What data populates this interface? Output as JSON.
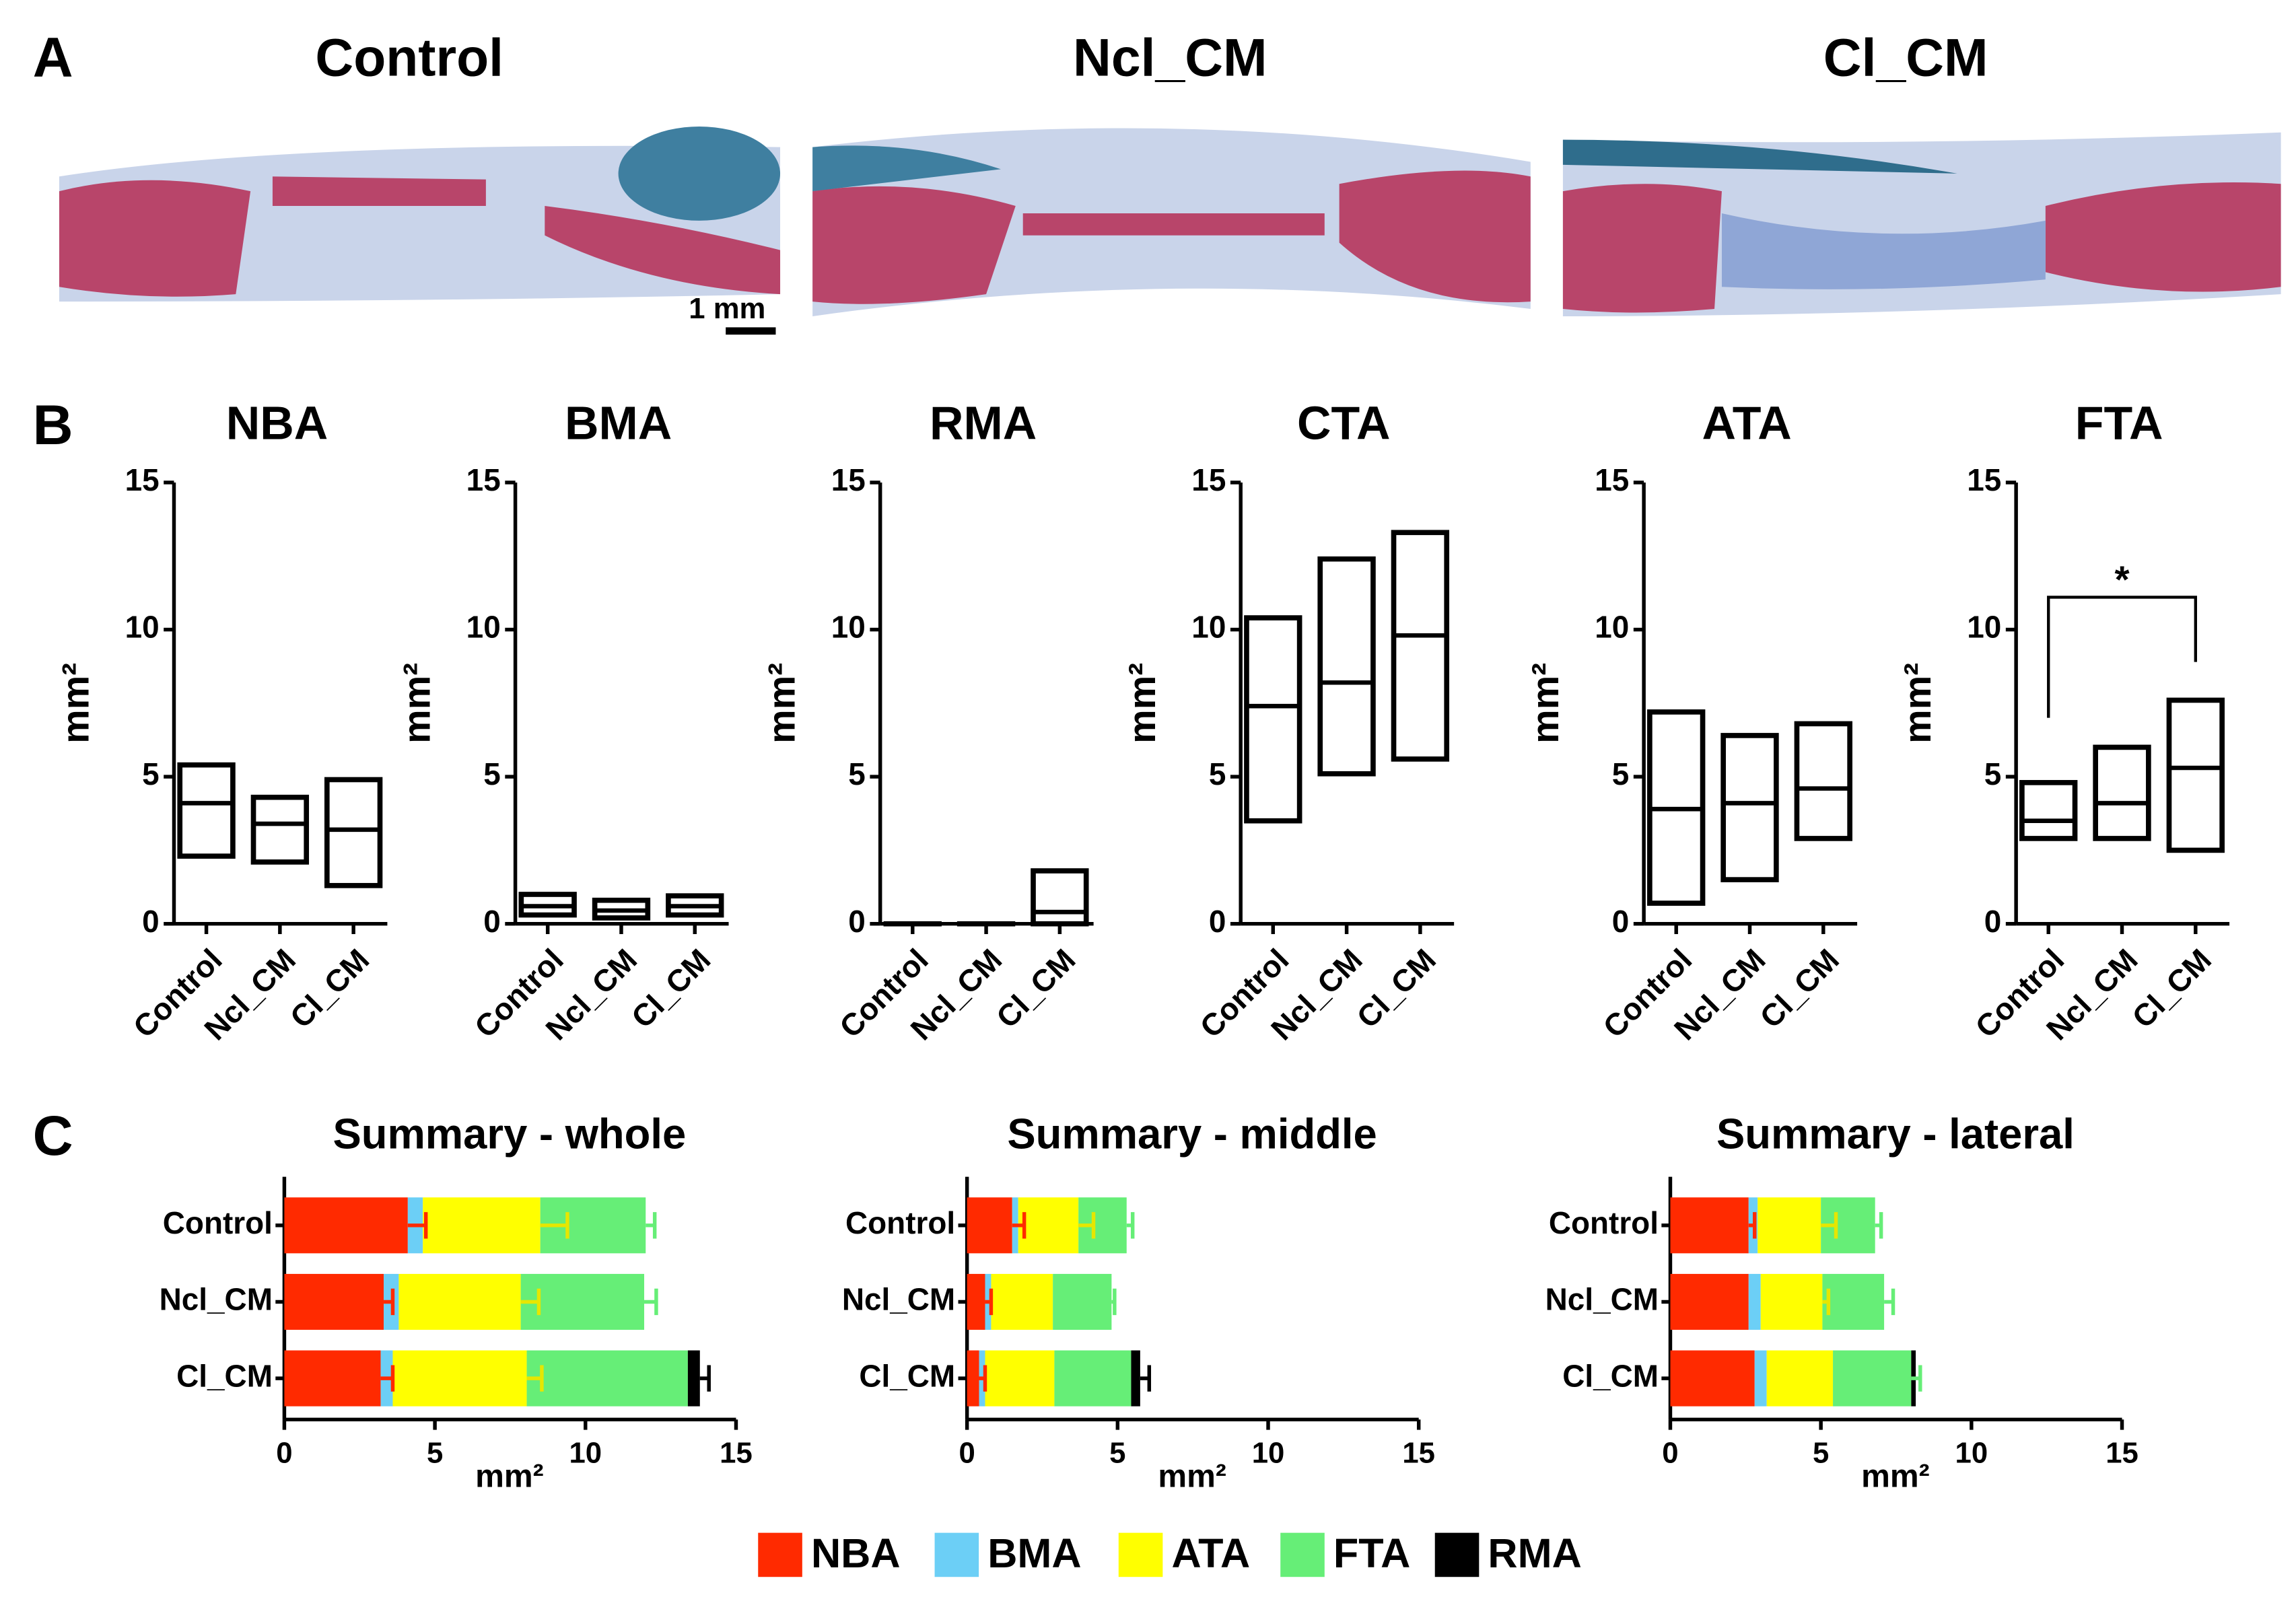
{
  "panel_labels": [
    "A",
    "B",
    "C"
  ],
  "images": {
    "titles": [
      "Control",
      "Ncl_CM",
      "Cl_CM"
    ],
    "scale_bar": "1 mm"
  },
  "chart_data": [
    {
      "type": "box",
      "title": "NBA",
      "y_label": "mm²",
      "categories": [
        "Control",
        "Ncl_CM",
        "Cl_CM"
      ],
      "min": [
        2.3,
        2.1,
        1.3
      ],
      "median": [
        4.1,
        3.4,
        3.2
      ],
      "max": [
        5.4,
        4.3,
        4.9
      ],
      "ylim": [
        0,
        15
      ],
      "yticks": [
        0,
        5,
        10,
        15
      ]
    },
    {
      "type": "box",
      "title": "BMA",
      "y_label": "mm²",
      "categories": [
        "Control",
        "Ncl_CM",
        "Cl_CM"
      ],
      "min": [
        0.3,
        0.2,
        0.3
      ],
      "median": [
        0.6,
        0.45,
        0.6
      ],
      "max": [
        1.0,
        0.8,
        0.95
      ],
      "ylim": [
        0,
        15
      ],
      "yticks": [
        0,
        5,
        10,
        15
      ]
    },
    {
      "type": "box",
      "title": "RMA",
      "y_label": "mm²",
      "categories": [
        "Control",
        "Ncl_CM",
        "Cl_CM"
      ],
      "min": [
        0,
        0,
        0
      ],
      "median": [
        0,
        0,
        0.4
      ],
      "max": [
        0,
        0,
        1.8
      ],
      "ylim": [
        0,
        15
      ],
      "yticks": [
        0,
        5,
        10,
        15
      ]
    },
    {
      "type": "box",
      "title": "CTA",
      "y_label": "mm²",
      "categories": [
        "Control",
        "Ncl_CM",
        "Cl_CM"
      ],
      "min": [
        3.5,
        5.1,
        5.6
      ],
      "median": [
        7.4,
        8.2,
        9.8
      ],
      "max": [
        10.4,
        12.4,
        13.3
      ],
      "ylim": [
        0,
        15
      ],
      "yticks": [
        0,
        5,
        10,
        15
      ]
    },
    {
      "type": "box",
      "title": "ATA",
      "y_label": "mm²",
      "categories": [
        "Control",
        "Ncl_CM",
        "Cl_CM"
      ],
      "min": [
        0.7,
        1.5,
        2.9
      ],
      "median": [
        3.9,
        4.1,
        4.6
      ],
      "max": [
        7.2,
        6.4,
        6.8
      ],
      "ylim": [
        0,
        15
      ],
      "yticks": [
        0,
        5,
        10,
        15
      ]
    },
    {
      "type": "box",
      "title": "FTA",
      "y_label": "mm²",
      "categories": [
        "Control",
        "Ncl_CM",
        "Cl_CM"
      ],
      "min": [
        2.9,
        2.9,
        2.5
      ],
      "median": [
        3.5,
        4.1,
        5.3
      ],
      "max": [
        4.8,
        6.0,
        7.6
      ],
      "ylim": [
        0,
        15
      ],
      "yticks": [
        0,
        5,
        10,
        15
      ],
      "significance": [
        {
          "label": "*",
          "between": [
            "Control",
            "Cl_CM"
          ]
        }
      ]
    },
    {
      "type": "stacked_barh",
      "title": "Summary - whole",
      "x_label": "mm²",
      "categories": [
        "Control",
        "Ncl_CM",
        "Cl_CM"
      ],
      "xlim": [
        0,
        15
      ],
      "xticks": [
        0,
        5,
        10,
        15
      ],
      "series": [
        {
          "name": "NBA",
          "color": "#ff2a00",
          "values": [
            4.1,
            3.3,
            3.2
          ],
          "errors": [
            0.6,
            0.3,
            0.4
          ]
        },
        {
          "name": "BMA",
          "color": "#6ccff6",
          "values": [
            0.5,
            0.5,
            0.4
          ],
          "errors": [
            null,
            null,
            null
          ]
        },
        {
          "name": "ATA",
          "color": "#ffff00",
          "values": [
            3.9,
            4.05,
            4.45
          ],
          "errors": [
            0.9,
            0.6,
            0.5
          ]
        },
        {
          "name": "FTA",
          "color": "#66ee77",
          "values": [
            3.5,
            4.1,
            5.35
          ],
          "errors": [
            0.3,
            0.4,
            null
          ]
        },
        {
          "name": "RMA",
          "color": "#000000",
          "values": [
            0,
            0,
            0.4
          ],
          "errors": [
            null,
            null,
            0.3
          ]
        }
      ]
    },
    {
      "type": "stacked_barh",
      "title": "Summary - middle",
      "x_label": "mm²",
      "categories": [
        "Control",
        "Ncl_CM",
        "Cl_CM"
      ],
      "xlim": [
        0,
        15
      ],
      "xticks": [
        0,
        5,
        10,
        15
      ],
      "series": [
        {
          "name": "NBA",
          "color": "#ff2a00",
          "values": [
            1.5,
            0.6,
            0.4
          ],
          "errors": [
            0.4,
            0.2,
            0.2
          ]
        },
        {
          "name": "BMA",
          "color": "#6ccff6",
          "values": [
            0.2,
            0.2,
            0.2
          ],
          "errors": [
            null,
            null,
            null
          ]
        },
        {
          "name": "ATA",
          "color": "#ffff00",
          "values": [
            2.0,
            2.05,
            2.3
          ],
          "errors": [
            0.5,
            null,
            null
          ]
        },
        {
          "name": "FTA",
          "color": "#66ee77",
          "values": [
            1.6,
            1.95,
            2.55
          ],
          "errors": [
            0.2,
            0.1,
            null
          ]
        },
        {
          "name": "RMA",
          "color": "#000000",
          "values": [
            0,
            0,
            0.3
          ],
          "errors": [
            null,
            null,
            0.3
          ]
        }
      ]
    },
    {
      "type": "stacked_barh",
      "title": "Summary - lateral",
      "x_label": "mm²",
      "categories": [
        "Control",
        "Ncl_CM",
        "Cl_CM"
      ],
      "xlim": [
        0,
        15
      ],
      "xticks": [
        0,
        5,
        10,
        15
      ],
      "series": [
        {
          "name": "NBA",
          "color": "#ff2a00",
          "values": [
            2.6,
            2.6,
            2.8
          ],
          "errors": [
            0.2,
            null,
            null
          ]
        },
        {
          "name": "BMA",
          "color": "#6ccff6",
          "values": [
            0.3,
            0.4,
            0.4
          ],
          "errors": [
            null,
            null,
            null
          ]
        },
        {
          "name": "ATA",
          "color": "#ffff00",
          "values": [
            2.1,
            2.05,
            2.2
          ],
          "errors": [
            0.5,
            0.2,
            null
          ]
        },
        {
          "name": "FTA",
          "color": "#66ee77",
          "values": [
            1.8,
            2.05,
            2.6
          ],
          "errors": [
            0.2,
            0.3,
            0.3
          ]
        },
        {
          "name": "RMA",
          "color": "#000000",
          "values": [
            0,
            0,
            0.15
          ],
          "errors": [
            null,
            null,
            null
          ]
        }
      ]
    }
  ]
}
